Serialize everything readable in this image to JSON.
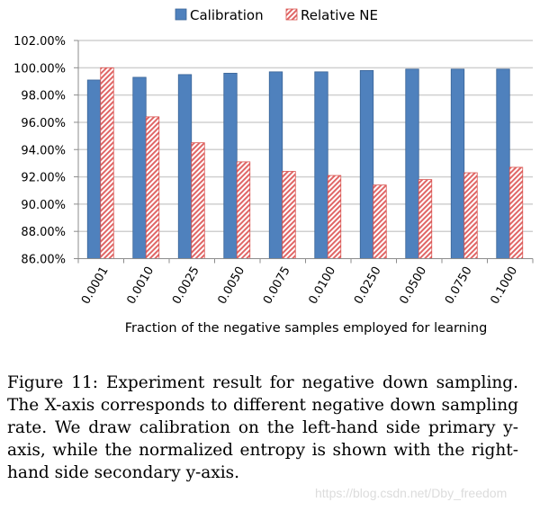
{
  "chart_data": {
    "type": "bar",
    "title": "",
    "xlabel": "Fraction of the negative samples employed for learning",
    "ylabel": "",
    "ylim": [
      86,
      102
    ],
    "yticks": [
      "86.00%",
      "88.00%",
      "90.00%",
      "92.00%",
      "94.00%",
      "96.00%",
      "98.00%",
      "100.00%",
      "102.00%"
    ],
    "ytick_values": [
      86,
      88,
      90,
      92,
      94,
      96,
      98,
      100,
      102
    ],
    "grid": true,
    "legend_position": "top-center",
    "categories": [
      "0.0001",
      "0.0010",
      "0.0025",
      "0.0050",
      "0.0075",
      "0.0100",
      "0.0250",
      "0.0500",
      "0.0750",
      "0.1000"
    ],
    "series": [
      {
        "name": "Calibration",
        "style": "solid",
        "color": "#4F81BD",
        "values": [
          99.1,
          99.3,
          99.5,
          99.6,
          99.7,
          99.7,
          99.8,
          99.9,
          99.9,
          99.9
        ]
      },
      {
        "name": "Relative NE",
        "style": "hatched",
        "color": "#D9534F",
        "values": [
          100.0,
          96.4,
          94.5,
          93.1,
          92.4,
          92.1,
          91.4,
          91.8,
          92.3,
          92.7
        ]
      }
    ]
  },
  "caption": "Figure 11:  Experiment result for negative down sampling. The X-axis corresponds to different negative down sampling rate. We draw calibration on the left-hand side primary y-axis, while the normalized entropy is shown with the right-hand side secondary y-axis.",
  "watermark": "https://blog.csdn.net/Dby_freedom"
}
